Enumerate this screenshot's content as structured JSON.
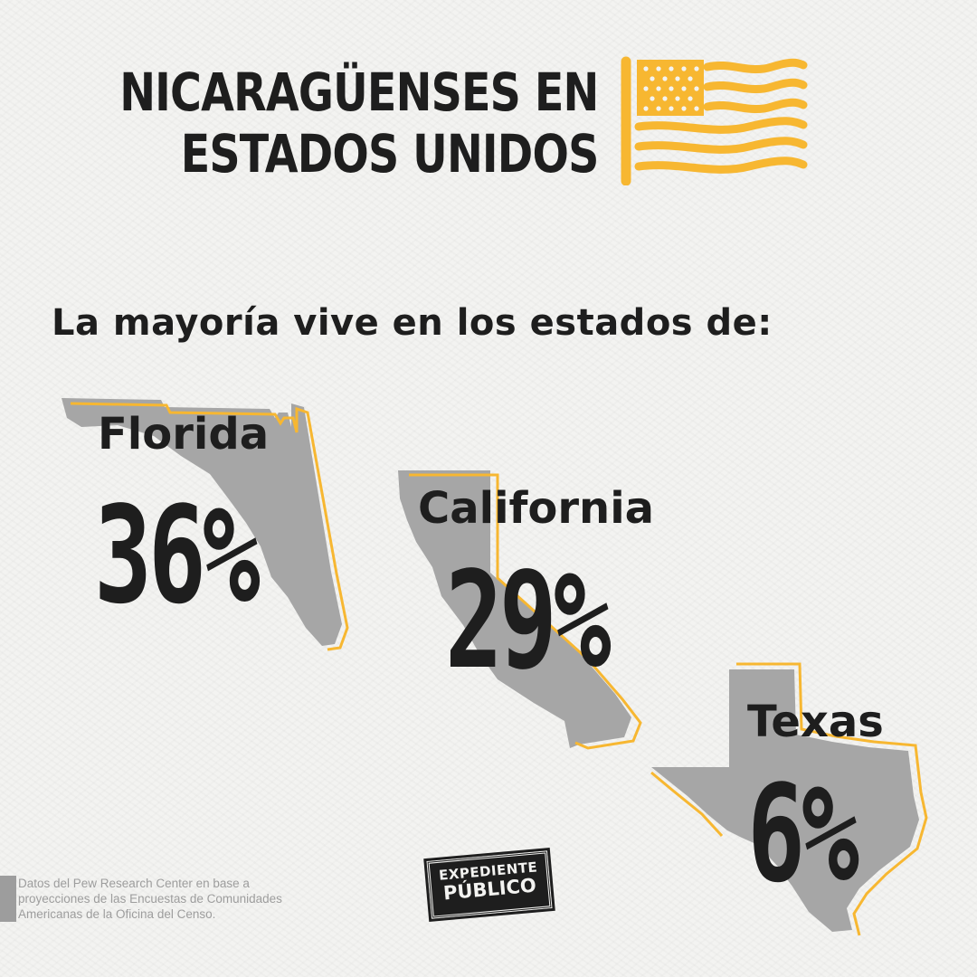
{
  "header": {
    "title_line1": "NICARAGÜENSES EN",
    "title_line2": "ESTADOS UNIDOS",
    "flag_icon": "us-flag-icon",
    "accent_color": "#f7b731"
  },
  "subtitle": "La mayoría vive en los estados de:",
  "states": [
    {
      "name": "Florida",
      "percent": "36%",
      "value": 36
    },
    {
      "name": "California",
      "percent": "29%",
      "value": 29
    },
    {
      "name": "Texas",
      "percent": "6%",
      "value": 6
    }
  ],
  "source": {
    "line1": "Datos del Pew Research Center en base a",
    "line2": "proyecciones de las Encuestas de Comunidades",
    "line3": "Americanas de la Oficina del Censo."
  },
  "logo": {
    "line1": "EXPEDIENTE",
    "line2": "PÚBLICO"
  },
  "colors": {
    "map_fill": "#a6a6a6",
    "map_outline": "#f7b731",
    "text": "#1e1e1e",
    "background": "#f3f3f1"
  }
}
